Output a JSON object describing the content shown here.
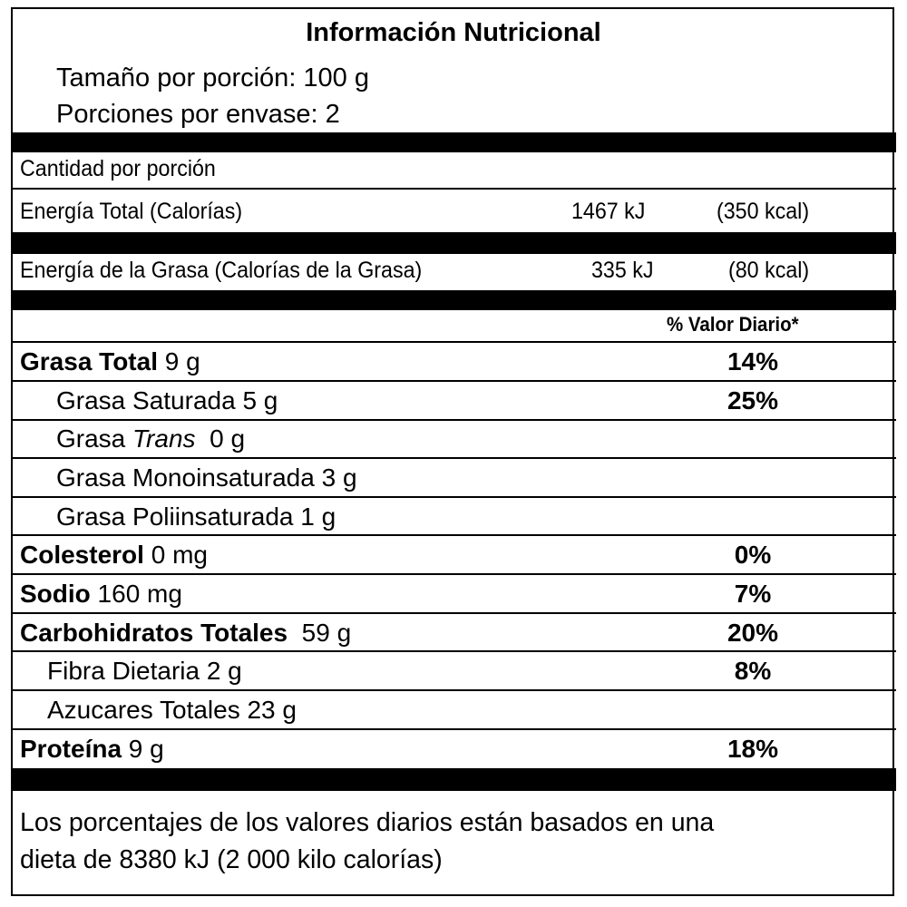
{
  "header": {
    "title": "Información Nutricional",
    "serving_size": "Tamaño por porción: 100 g",
    "servings_per_container": "Porciones por envase: 2"
  },
  "amount_per_serving": "Cantidad por porción",
  "energy_total": {
    "label": "Energía Total (Calorías)",
    "kj": "1467 kJ",
    "kcal": "(350  kcal)"
  },
  "energy_fat": {
    "label": "Energía de la Grasa (Calorías de la Grasa)",
    "kj": "335 kJ",
    "kcal": "(80 kcal)"
  },
  "dv_header": "% Valor Diario*",
  "nutrients": [
    {
      "name": "Grasa Total",
      "amount": " 9 g",
      "dv": "14%"
    },
    {
      "name": "Grasa Saturada 5 g",
      "dv": "25%"
    },
    {
      "name": "Grasa ",
      "name_italic": "Trans",
      "amount": "  0 g",
      "dv": ""
    },
    {
      "name": "Grasa Monoinsaturada 3 g",
      "dv": ""
    },
    {
      "name": "Grasa Poliinsaturada 1 g",
      "dv": ""
    },
    {
      "name": "Colesterol",
      "amount": " 0 mg",
      "dv": "0%"
    },
    {
      "name": "Sodio",
      "amount": " 160 mg",
      "dv": "7%"
    },
    {
      "name": "Carbohidratos Totales",
      "amount": "  59 g",
      "dv": "20%"
    },
    {
      "name": "Fibra Dietaria 2 g",
      "dv": "8%"
    },
    {
      "name": "Azucares Totales 23 g",
      "dv": ""
    },
    {
      "name": "Proteína",
      "amount": " 9 g",
      "dv": "18%"
    }
  ],
  "footnote": {
    "line1": "Los porcentajes de los valores diarios están basados en una",
    "line2": "dieta de 8380 kJ (2 000 kilo calorías)"
  }
}
